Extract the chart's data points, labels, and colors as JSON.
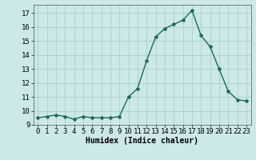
{
  "x": [
    0,
    1,
    2,
    3,
    4,
    5,
    6,
    7,
    8,
    9,
    10,
    11,
    12,
    13,
    14,
    15,
    16,
    17,
    18,
    19,
    20,
    21,
    22,
    23
  ],
  "y": [
    9.5,
    9.6,
    9.7,
    9.6,
    9.4,
    9.6,
    9.5,
    9.5,
    9.5,
    9.6,
    11.0,
    11.6,
    13.6,
    15.3,
    15.9,
    16.2,
    16.5,
    17.2,
    15.4,
    14.6,
    13.0,
    11.4,
    10.8,
    10.7
  ],
  "line_color": "#1a6b5a",
  "marker": "*",
  "markersize": 3,
  "linewidth": 1.0,
  "xlabel": "Humidex (Indice chaleur)",
  "yticks": [
    9,
    10,
    11,
    12,
    13,
    14,
    15,
    16,
    17
  ],
  "xlim": [
    -0.5,
    23.5
  ],
  "ylim": [
    9.0,
    17.6
  ],
  "background_color": "#cce8e8",
  "grid_color": "#aacfcf",
  "xlabel_fontsize": 7,
  "tick_fontsize": 6.5
}
